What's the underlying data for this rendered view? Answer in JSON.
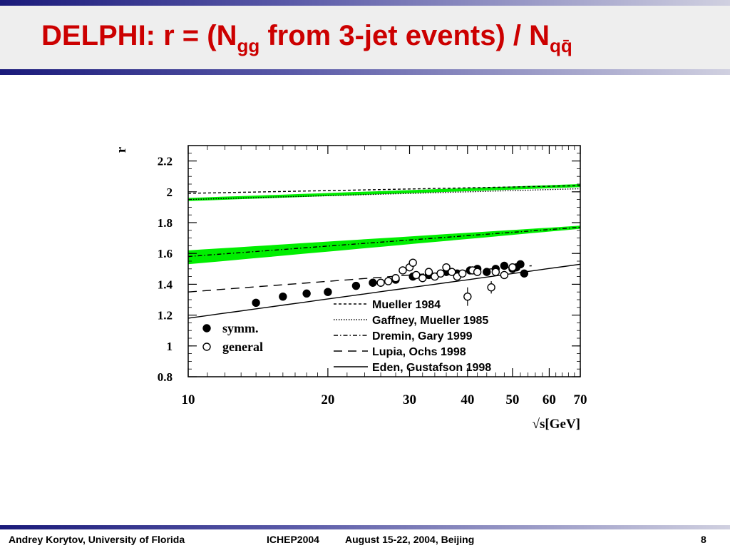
{
  "slide": {
    "title_main": "DELPHI:  r = (N",
    "title_sub1": "gg",
    "title_mid": " from 3-jet events) / N",
    "title_sub2": "qq̄",
    "footer_author": "Andrey Korytov, University of Florida",
    "footer_conf": "ICHEP2004",
    "footer_dates": "August 15-22, 2004, Beijing",
    "footer_page": "8"
  },
  "chart_data": {
    "type": "scatter",
    "title": "",
    "xlabel": "√s[GeV]",
    "ylabel": "r",
    "xscale": "log",
    "xlim": [
      10,
      70
    ],
    "ylim": [
      0.8,
      2.3
    ],
    "x_ticks": [
      10,
      20,
      30,
      40,
      50,
      60,
      70
    ],
    "y_ticks": [
      0.8,
      1,
      1.2,
      1.4,
      1.6,
      1.8,
      2,
      2.2
    ],
    "x_tick_labels": [
      "10",
      "20",
      "30",
      "40",
      "50",
      "60",
      "70"
    ],
    "y_tick_labels": [
      "0.8",
      "1",
      "1.2",
      "1.4",
      "1.6",
      "1.8",
      "2",
      "2.2"
    ],
    "colors": {
      "band": "#00ee00",
      "points": "#000000"
    },
    "points_legend": [
      {
        "name": "symm.",
        "marker": "filled-circle"
      },
      {
        "name": "general",
        "marker": "open-circle"
      }
    ],
    "theory_legend": [
      {
        "name": "Mueller 1984",
        "style": "dashed-fine"
      },
      {
        "name": "Gaffney, Mueller 1985",
        "style": "dotted"
      },
      {
        "name": "Dremin, Gary 1999",
        "style": "dash-dot"
      },
      {
        "name": "Lupia, Ochs 1998",
        "style": "long-dash"
      },
      {
        "name": "Eden, Gustafson 1998",
        "style": "solid"
      }
    ],
    "curves": [
      {
        "name": "Mueller 1984",
        "x": [
          10,
          70
        ],
        "y": [
          1.99,
          2.04
        ]
      },
      {
        "name": "Gaffney, Mueller 1985",
        "x": [
          10,
          70
        ],
        "y": [
          1.95,
          2.02
        ]
      },
      {
        "name": "Dremin, Gary 1999",
        "x": [
          10,
          70
        ],
        "y": [
          1.58,
          1.77
        ]
      },
      {
        "name": "Lupia, Ochs 1998",
        "x": [
          10,
          55
        ],
        "y": [
          1.35,
          1.52
        ]
      },
      {
        "name": "Eden, Gustafson 1998",
        "x": [
          10,
          70
        ],
        "y": [
          1.18,
          1.53
        ]
      }
    ],
    "bands": [
      {
        "x": [
          10,
          70
        ],
        "y_low": [
          1.94,
          2.03
        ],
        "y_high": [
          1.96,
          2.05
        ]
      },
      {
        "x": [
          10,
          70
        ],
        "y_low": [
          1.53,
          1.76
        ],
        "y_high": [
          1.62,
          1.78
        ]
      }
    ],
    "series": [
      {
        "name": "symm.",
        "x": [
          14.0,
          16.0,
          18.0,
          20.0,
          23.0,
          25.0,
          28.0,
          30.5,
          33.0,
          35.0,
          36.0,
          38.0,
          40.5,
          42.0,
          44.0,
          46.0,
          48.0,
          50.0,
          51.0,
          52.0,
          53.0
        ],
        "y": [
          1.28,
          1.32,
          1.34,
          1.35,
          1.39,
          1.41,
          1.43,
          1.45,
          1.46,
          1.47,
          1.48,
          1.47,
          1.49,
          1.5,
          1.48,
          1.5,
          1.52,
          1.5,
          1.51,
          1.53,
          1.47
        ],
        "err": [
          0,
          0,
          0,
          0,
          0,
          0,
          0,
          0,
          0,
          0,
          0,
          0,
          0,
          0,
          0,
          0,
          0,
          0,
          0,
          0,
          0
        ]
      },
      {
        "name": "general",
        "x": [
          26.0,
          27.0,
          28.0,
          29.0,
          30.0,
          30.5,
          31.0,
          32.0,
          33.0,
          34.0,
          35.0,
          36.0,
          37.0,
          38.0,
          39.0,
          40.0,
          41.0,
          42.0,
          45.0,
          46.0,
          48.0,
          50.0
        ],
        "y": [
          1.41,
          1.42,
          1.44,
          1.49,
          1.51,
          1.54,
          1.46,
          1.44,
          1.48,
          1.45,
          1.47,
          1.51,
          1.48,
          1.45,
          1.47,
          1.32,
          1.49,
          1.48,
          1.38,
          1.48,
          1.46,
          1.51
        ],
        "err": [
          0,
          0,
          0,
          0,
          0,
          0,
          0,
          0,
          0,
          0,
          0,
          0,
          0,
          0,
          0,
          0.06,
          0,
          0,
          0.04,
          0,
          0,
          0
        ]
      }
    ]
  }
}
